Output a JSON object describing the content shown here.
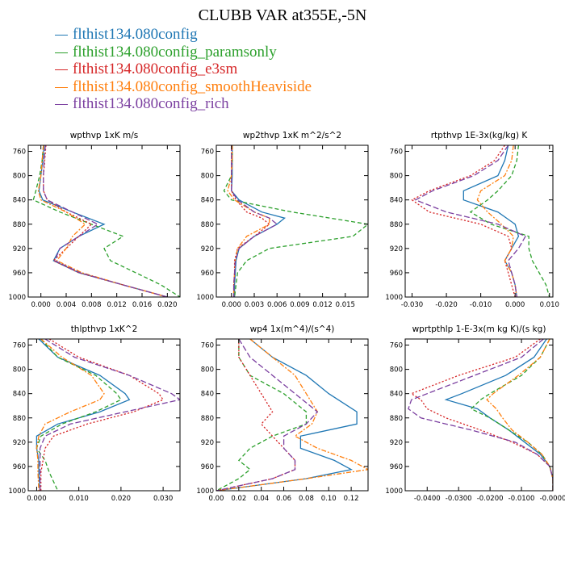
{
  "title": "CLUBB VAR at355E,-5N",
  "legend": [
    {
      "name": "flthist134.080config",
      "color": "#1f77b4"
    },
    {
      "name": "flthist134.080config_paramsonly",
      "color": "#2ca02c"
    },
    {
      "name": "flthist134.080config_e3sm",
      "color": "#d62728"
    },
    {
      "name": "flthist134.080config_smoothHeaviside",
      "color": "#ff7f0e"
    },
    {
      "name": "flthist134.080config_rich",
      "color": "#7b3fa0"
    }
  ],
  "chart_data": [
    {
      "type": "line",
      "title": "wpthvp  1xK m/s",
      "ylim": [
        1000,
        750
      ],
      "yticks": [
        760,
        800,
        840,
        880,
        920,
        960,
        1000
      ],
      "xlim": [
        -0.002,
        0.022
      ],
      "xticks": [
        0.0,
        0.004,
        0.008,
        0.012,
        0.016,
        0.02
      ],
      "xticklabels": [
        "0.000",
        "0.004",
        "0.008",
        "0.012",
        "0.016",
        "0.020"
      ],
      "y": [
        750,
        775,
        800,
        825,
        840,
        860,
        880,
        900,
        920,
        940,
        960,
        980,
        1000
      ],
      "series": [
        {
          "values": [
            0.0005,
            0.0003,
            0.0,
            -0.0003,
            0.0003,
            0.005,
            0.01,
            0.006,
            0.003,
            0.002,
            0.006,
            0.013,
            0.02
          ]
        },
        {
          "values": [
            0.0004,
            0.0002,
            -0.0002,
            -0.0008,
            -0.0012,
            0.003,
            0.008,
            0.013,
            0.01,
            0.011,
            0.015,
            0.019,
            0.022
          ]
        },
        {
          "values": [
            0.0008,
            0.0006,
            0.0004,
            0.0004,
            0.001,
            0.004,
            0.008,
            0.006,
            0.004,
            0.002,
            0.006,
            0.013,
            0.02
          ]
        },
        {
          "values": [
            0.0004,
            0.0002,
            0.0,
            -0.0004,
            0.0,
            0.004,
            0.007,
            0.005,
            0.004,
            0.0025,
            0.0065,
            0.013,
            0.02
          ]
        },
        {
          "values": [
            0.0007,
            0.0005,
            0.0004,
            0.0004,
            0.001,
            0.005,
            0.009,
            0.006,
            0.003,
            0.0022,
            0.0062,
            0.013,
            0.02
          ]
        }
      ]
    },
    {
      "type": "line",
      "title": "wp2thvp  1xK m^2/s^2",
      "ylim": [
        1000,
        750
      ],
      "yticks": [
        760,
        800,
        840,
        880,
        920,
        960,
        1000
      ],
      "xlim": [
        -0.002,
        0.018
      ],
      "xticks": [
        0.0,
        0.003,
        0.006,
        0.009,
        0.012,
        0.015
      ],
      "xticklabels": [
        "0.000",
        "0.003",
        "0.006",
        "0.009",
        "0.012",
        "0.015"
      ],
      "y": [
        750,
        775,
        800,
        825,
        840,
        860,
        870,
        880,
        900,
        920,
        940,
        960,
        980,
        1000
      ],
      "series": [
        {
          "values": [
            0.0001,
            0.0001,
            0.0001,
            0.0,
            0.001,
            0.004,
            0.007,
            0.006,
            0.003,
            0.001,
            0.0006,
            0.0005,
            0.0004,
            0.0004
          ]
        },
        {
          "values": [
            0.0001,
            0.0001,
            0.0,
            -0.001,
            0.0,
            0.008,
            0.013,
            0.018,
            0.016,
            0.005,
            0.002,
            0.0008,
            0.0006,
            0.0004
          ]
        },
        {
          "values": [
            0.0,
            0.0,
            0.0,
            0.0,
            0.0006,
            0.002,
            0.004,
            0.005,
            0.003,
            0.0008,
            0.0004,
            0.0004,
            0.0003,
            0.0003
          ]
        },
        {
          "values": [
            0.0001,
            0.0001,
            0.0,
            -0.0005,
            0.0004,
            0.003,
            0.005,
            0.005,
            0.002,
            0.0008,
            0.0005,
            0.0004,
            0.0003,
            0.0003
          ]
        },
        {
          "values": [
            0.0,
            0.0,
            0.0,
            0.0,
            0.0008,
            0.003,
            0.005,
            0.006,
            0.003,
            0.001,
            0.0005,
            0.0004,
            0.0003,
            0.0003
          ]
        }
      ]
    },
    {
      "type": "line",
      "title": "rtpthvp  1E-3x(kg/kg) K",
      "ylim": [
        1000,
        750
      ],
      "yticks": [
        760,
        800,
        840,
        880,
        920,
        960,
        1000
      ],
      "xlim": [
        -0.032,
        0.011
      ],
      "xticks": [
        -0.03,
        -0.02,
        -0.01,
        0.0,
        0.01
      ],
      "xticklabels": [
        "-0.030",
        "-0.020",
        "-0.010",
        "0.000",
        "0.010"
      ],
      "y": [
        750,
        775,
        800,
        825,
        840,
        860,
        880,
        900,
        920,
        940,
        960,
        980,
        1000
      ],
      "series": [
        {
          "values": [
            -0.002,
            -0.003,
            -0.005,
            -0.015,
            -0.015,
            -0.005,
            0.0,
            0.001,
            -0.001,
            -0.003,
            -0.001,
            0.0,
            0.0005
          ]
        },
        {
          "values": [
            0.001,
            0.0005,
            -0.001,
            -0.005,
            -0.008,
            -0.013,
            -0.007,
            0.004,
            0.004,
            0.005,
            0.007,
            0.009,
            0.01
          ]
        },
        {
          "values": [
            -0.003,
            -0.006,
            -0.013,
            -0.025,
            -0.03,
            -0.025,
            -0.01,
            -0.002,
            -0.001,
            -0.003,
            -0.002,
            -0.001,
            0.0
          ]
        },
        {
          "values": [
            -0.0005,
            -0.001,
            -0.003,
            -0.01,
            -0.011,
            -0.008,
            -0.004,
            -0.0005,
            -0.001,
            -0.003,
            -0.001,
            0.0,
            0.0005
          ]
        },
        {
          "values": [
            -0.002,
            -0.005,
            -0.012,
            -0.024,
            -0.029,
            -0.02,
            -0.005,
            0.003,
            0.001,
            -0.002,
            -0.001,
            0.0,
            0.0005
          ]
        }
      ]
    },
    {
      "type": "line",
      "title": "thlpthvp  1xK^2",
      "ylim": [
        1000,
        750
      ],
      "yticks": [
        760,
        800,
        840,
        880,
        920,
        960,
        1000
      ],
      "xlim": [
        -0.002,
        0.034
      ],
      "xticks": [
        0.0,
        0.01,
        0.02,
        0.03
      ],
      "xticklabels": [
        "0.000",
        "0.010",
        "0.020",
        "0.030"
      ],
      "y": [
        750,
        780,
        810,
        840,
        850,
        870,
        890,
        910,
        930,
        950,
        970,
        1000
      ],
      "series": [
        {
          "values": [
            0.0005,
            0.005,
            0.015,
            0.021,
            0.022,
            0.015,
            0.005,
            0.0,
            0.0,
            0.0005,
            0.0005,
            0.0008
          ]
        },
        {
          "values": [
            0.001,
            0.005,
            0.014,
            0.019,
            0.02,
            0.014,
            0.006,
            0.001,
            0.0,
            0.002,
            0.003,
            0.005
          ]
        },
        {
          "values": [
            0.003,
            0.01,
            0.022,
            0.029,
            0.03,
            0.023,
            0.012,
            0.004,
            0.002,
            0.0015,
            0.001,
            0.001
          ]
        },
        {
          "values": [
            0.001,
            0.006,
            0.013,
            0.016,
            0.015,
            0.008,
            0.002,
            0.0005,
            0.0,
            0.0003,
            0.0003,
            0.0005
          ]
        },
        {
          "values": [
            0.002,
            0.009,
            0.022,
            0.032,
            0.034,
            0.021,
            0.008,
            0.002,
            0.0008,
            0.0008,
            0.0008,
            0.0008
          ]
        }
      ]
    },
    {
      "type": "line",
      "title": "wp4  1x(m^4)/(s^4)",
      "ylim": [
        1000,
        750
      ],
      "yticks": [
        760,
        800,
        840,
        880,
        920,
        960,
        1000
      ],
      "xlim": [
        0.0,
        0.135
      ],
      "xticks": [
        0.0,
        0.02,
        0.04,
        0.06,
        0.08,
        0.1,
        0.12
      ],
      "xticklabels": [
        "0.00",
        "0.02",
        "0.04",
        "0.06",
        "0.08",
        "0.10",
        "0.12"
      ],
      "y": [
        750,
        780,
        810,
        840,
        870,
        890,
        910,
        930,
        950,
        965,
        980,
        1000
      ],
      "series": [
        {
          "values": [
            0.03,
            0.05,
            0.08,
            0.1,
            0.125,
            0.125,
            0.075,
            0.075,
            0.105,
            0.12,
            0.08,
            0.0
          ]
        },
        {
          "values": [
            0.02,
            0.02,
            0.03,
            0.06,
            0.08,
            0.08,
            0.05,
            0.03,
            0.02,
            0.03,
            0.02,
            0.0
          ]
        },
        {
          "values": [
            0.02,
            0.02,
            0.03,
            0.04,
            0.05,
            0.04,
            0.05,
            0.06,
            0.07,
            0.07,
            0.05,
            0.0
          ]
        },
        {
          "values": [
            0.03,
            0.05,
            0.07,
            0.08,
            0.09,
            0.085,
            0.07,
            0.09,
            0.12,
            0.135,
            0.08,
            0.0
          ]
        },
        {
          "values": [
            0.02,
            0.03,
            0.05,
            0.07,
            0.09,
            0.08,
            0.06,
            0.06,
            0.07,
            0.07,
            0.05,
            0.0
          ]
        }
      ]
    },
    {
      "type": "line",
      "title": "wprtpthlp  1-E-3x(m kg K)/(s kg)",
      "ylim": [
        1000,
        750
      ],
      "yticks": [
        760,
        800,
        840,
        880,
        920,
        960,
        1000
      ],
      "xlim": [
        -0.047,
        0.0
      ],
      "xticks": [
        -0.04,
        -0.03,
        -0.02,
        -0.01,
        0.0
      ],
      "xticklabels": [
        "-0.0400",
        "-0.0300",
        "-0.0200",
        "-0.0100",
        "-0.0000"
      ],
      "y": [
        750,
        780,
        810,
        840,
        850,
        865,
        880,
        900,
        920,
        940,
        960,
        980,
        1000
      ],
      "series": [
        {
          "values": [
            -0.002,
            -0.006,
            -0.015,
            -0.029,
            -0.034,
            -0.024,
            -0.02,
            -0.014,
            -0.009,
            -0.004,
            -0.001,
            0.0,
            0.0
          ]
        },
        {
          "values": [
            -0.001,
            -0.004,
            -0.01,
            -0.02,
            -0.023,
            -0.026,
            -0.02,
            -0.014,
            -0.008,
            -0.0035,
            -0.001,
            0.0,
            0.0
          ]
        },
        {
          "values": [
            -0.004,
            -0.012,
            -0.03,
            -0.045,
            -0.042,
            -0.04,
            -0.034,
            -0.023,
            -0.013,
            -0.005,
            -0.001,
            0.0,
            0.0
          ]
        },
        {
          "values": [
            -0.001,
            -0.004,
            -0.011,
            -0.019,
            -0.021,
            -0.018,
            -0.016,
            -0.013,
            -0.008,
            -0.0035,
            -0.001,
            0.0,
            0.0
          ]
        },
        {
          "values": [
            -0.003,
            -0.01,
            -0.025,
            -0.04,
            -0.045,
            -0.046,
            -0.042,
            -0.026,
            -0.012,
            -0.005,
            -0.001,
            0.0,
            0.0
          ]
        }
      ]
    }
  ]
}
